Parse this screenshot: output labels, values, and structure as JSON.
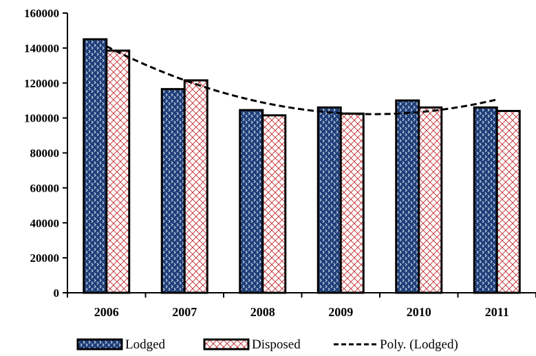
{
  "colors": {
    "lodged": "#1f3f7a",
    "disposed_bg": "#ffffff",
    "disposed_pattern": "#c0282d",
    "axis": "#000000",
    "trend": "#000000"
  },
  "legend": {
    "items": [
      {
        "label": "Lodged",
        "icon": "blue-dotted-swatch"
      },
      {
        "label": "Disposed",
        "icon": "red-crosshatch-swatch"
      },
      {
        "label": "Poly. (Lodged)",
        "icon": "dashed-line-swatch"
      }
    ]
  },
  "chart_data": {
    "type": "bar",
    "title": "",
    "xlabel": "",
    "ylabel": "",
    "categories": [
      "2006",
      "2007",
      "2008",
      "2009",
      "2010",
      "2011"
    ],
    "series": [
      {
        "name": "Lodged",
        "values": [
          145000,
          116500,
          104500,
          106000,
          110000,
          106000
        ]
      },
      {
        "name": "Disposed",
        "values": [
          138500,
          121500,
          101500,
          102500,
          106000,
          104000
        ]
      }
    ],
    "trendline": {
      "name": "Poly. (Lodged)",
      "type": "polynomial",
      "order": 2,
      "style": "dashed"
    },
    "ylim": [
      0,
      160000
    ],
    "yticks": [
      "0",
      "20000",
      "40000",
      "60000",
      "80000",
      "100000",
      "120000",
      "140000",
      "160000"
    ],
    "grid": false,
    "legend_position": "bottom"
  }
}
